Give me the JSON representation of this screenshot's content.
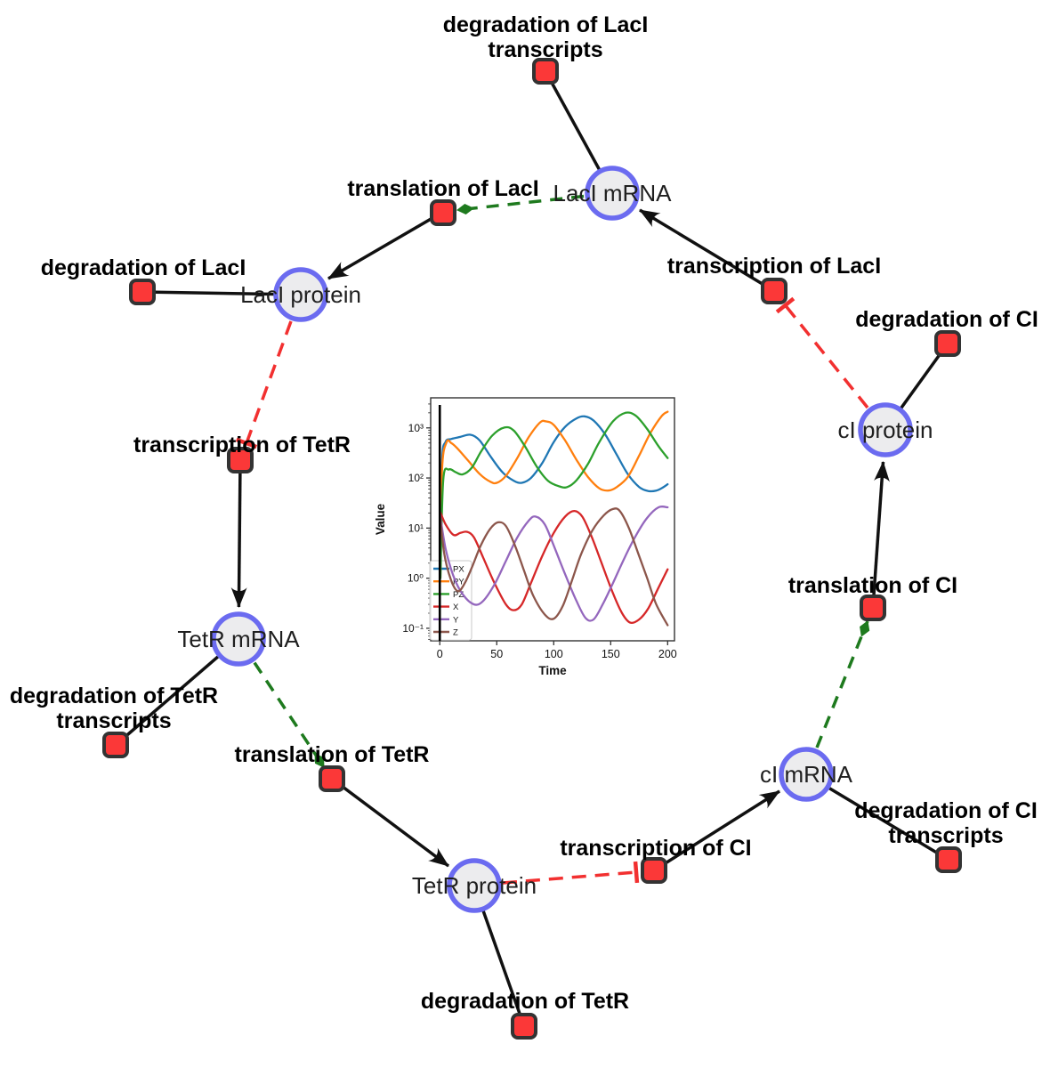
{
  "network": {
    "species": [
      {
        "id": "laci-mrna",
        "label": "LacI mRNA"
      },
      {
        "id": "laci-protein",
        "label": "LacI protein"
      },
      {
        "id": "tetr-mrna",
        "label": "TetR mRNA"
      },
      {
        "id": "tetr-protein",
        "label": "TetR protein"
      },
      {
        "id": "ci-mrna",
        "label": "cI mRNA"
      },
      {
        "id": "ci-protein",
        "label": "cI protein"
      }
    ],
    "reactions": [
      {
        "id": "degradation-laci-transcripts",
        "label": "degradation of LacI transcripts"
      },
      {
        "id": "translation-laci",
        "label": "translation of LacI"
      },
      {
        "id": "degradation-laci",
        "label": "degradation of LacI"
      },
      {
        "id": "transcription-tetr",
        "label": "transcription of TetR"
      },
      {
        "id": "degradation-tetr-transcripts",
        "label": "degradation of TetR transcripts"
      },
      {
        "id": "translation-tetr",
        "label": "translation of TetR"
      },
      {
        "id": "degradation-tetr",
        "label": "degradation of TetR"
      },
      {
        "id": "transcription-ci",
        "label": "transcription of CI"
      },
      {
        "id": "degradation-ci-transcripts",
        "label": "degradation of CI transcripts"
      },
      {
        "id": "translation-ci",
        "label": "translation of CI"
      },
      {
        "id": "degradation-ci",
        "label": "degradation of CI"
      },
      {
        "id": "transcription-laci",
        "label": "transcription of LacI"
      }
    ],
    "colors": {
      "species_fill": "#ececee",
      "species_stroke": "#6b6bf0",
      "reaction_fill": "#fb3838",
      "reaction_stroke": "#333333",
      "edge_black": "#111111",
      "edge_activation_green": "#1e7a1e",
      "edge_inhibition_red": "#f23030"
    }
  },
  "chart_data": {
    "type": "line",
    "title": "",
    "xlabel": "Time",
    "ylabel": "Value",
    "x_ticks": [
      0,
      50,
      100,
      150,
      200
    ],
    "y_scale": "log",
    "y_tick_exponents": [
      -1,
      0,
      1,
      2,
      3
    ],
    "xlim": [
      -8,
      206
    ],
    "ylim_log": [
      -1.25,
      3.6
    ],
    "grid": false,
    "legend_position": "lower left",
    "annotations": [
      {
        "type": "vline",
        "x": 0,
        "color": "#000000"
      }
    ],
    "series": [
      {
        "name": "PX",
        "color": "#1f77b4",
        "points": [
          [
            0.5,
            1
          ],
          [
            2,
            200
          ],
          [
            5,
            520
          ],
          [
            10,
            600
          ],
          [
            18,
            660
          ],
          [
            27,
            730
          ],
          [
            35,
            560
          ],
          [
            45,
            260
          ],
          [
            55,
            130
          ],
          [
            65,
            88
          ],
          [
            72,
            80
          ],
          [
            80,
            100
          ],
          [
            90,
            200
          ],
          [
            100,
            520
          ],
          [
            110,
            1050
          ],
          [
            120,
            1550
          ],
          [
            127,
            1700
          ],
          [
            135,
            1400
          ],
          [
            145,
            750
          ],
          [
            155,
            300
          ],
          [
            165,
            120
          ],
          [
            175,
            66
          ],
          [
            183,
            55
          ],
          [
            190,
            56
          ],
          [
            195,
            63
          ],
          [
            200,
            75
          ]
        ]
      },
      {
        "name": "PY",
        "color": "#ff7f0e",
        "points": [
          [
            0.5,
            1
          ],
          [
            2,
            150
          ],
          [
            6,
            520
          ],
          [
            10,
            500
          ],
          [
            15,
            400
          ],
          [
            25,
            220
          ],
          [
            35,
            120
          ],
          [
            44,
            85
          ],
          [
            50,
            80
          ],
          [
            58,
            110
          ],
          [
            68,
            250
          ],
          [
            78,
            650
          ],
          [
            88,
            1280
          ],
          [
            93,
            1350
          ],
          [
            100,
            1150
          ],
          [
            110,
            560
          ],
          [
            120,
            230
          ],
          [
            130,
            105
          ],
          [
            140,
            62
          ],
          [
            148,
            56
          ],
          [
            155,
            65
          ],
          [
            165,
            105
          ],
          [
            175,
            280
          ],
          [
            185,
            800
          ],
          [
            195,
            1750
          ],
          [
            200,
            2100
          ]
        ]
      },
      {
        "name": "PZ",
        "color": "#2ca02c",
        "points": [
          [
            0.5,
            1
          ],
          [
            3,
            90
          ],
          [
            8,
            148
          ],
          [
            14,
            130
          ],
          [
            20,
            118
          ],
          [
            28,
            160
          ],
          [
            36,
            330
          ],
          [
            46,
            700
          ],
          [
            57,
            1020
          ],
          [
            65,
            880
          ],
          [
            75,
            420
          ],
          [
            85,
            170
          ],
          [
            95,
            88
          ],
          [
            105,
            68
          ],
          [
            112,
            66
          ],
          [
            120,
            90
          ],
          [
            130,
            190
          ],
          [
            140,
            520
          ],
          [
            152,
            1350
          ],
          [
            163,
            2000
          ],
          [
            172,
            1750
          ],
          [
            182,
            950
          ],
          [
            192,
            430
          ],
          [
            200,
            250
          ]
        ]
      },
      {
        "name": "X",
        "color": "#d62728",
        "points": [
          [
            0,
            22
          ],
          [
            5,
            12
          ],
          [
            12,
            7.3
          ],
          [
            18,
            8
          ],
          [
            24,
            8.4
          ],
          [
            30,
            6.5
          ],
          [
            38,
            2.6
          ],
          [
            48,
            0.8
          ],
          [
            58,
            0.3
          ],
          [
            65,
            0.23
          ],
          [
            72,
            0.3
          ],
          [
            80,
            0.8
          ],
          [
            90,
            2.8
          ],
          [
            100,
            8
          ],
          [
            110,
            17
          ],
          [
            118,
            22
          ],
          [
            125,
            17
          ],
          [
            133,
            7
          ],
          [
            142,
            2
          ],
          [
            152,
            0.5
          ],
          [
            160,
            0.2
          ],
          [
            167,
            0.13
          ],
          [
            175,
            0.15
          ],
          [
            183,
            0.25
          ],
          [
            192,
            0.65
          ],
          [
            200,
            1.5
          ]
        ]
      },
      {
        "name": "Y",
        "color": "#9467bd",
        "points": [
          [
            0,
            20
          ],
          [
            5,
            4
          ],
          [
            12,
            1.1
          ],
          [
            20,
            0.48
          ],
          [
            30,
            0.3
          ],
          [
            38,
            0.35
          ],
          [
            48,
            0.75
          ],
          [
            58,
            2.2
          ],
          [
            68,
            6.5
          ],
          [
            78,
            14
          ],
          [
            84,
            17
          ],
          [
            92,
            12
          ],
          [
            100,
            4.5
          ],
          [
            110,
            1.2
          ],
          [
            120,
            0.35
          ],
          [
            128,
            0.16
          ],
          [
            135,
            0.15
          ],
          [
            143,
            0.3
          ],
          [
            152,
            0.8
          ],
          [
            162,
            2.5
          ],
          [
            172,
            7
          ],
          [
            182,
            16
          ],
          [
            192,
            26
          ],
          [
            200,
            26
          ]
        ]
      },
      {
        "name": "Z",
        "color": "#8c564b",
        "points": [
          [
            0,
            20
          ],
          [
            4,
            3
          ],
          [
            10,
            0.9
          ],
          [
            16,
            0.55
          ],
          [
            22,
            0.8
          ],
          [
            28,
            1.6
          ],
          [
            36,
            4.5
          ],
          [
            44,
            9.5
          ],
          [
            51,
            13
          ],
          [
            58,
            11
          ],
          [
            66,
            4.5
          ],
          [
            74,
            1.4
          ],
          [
            82,
            0.45
          ],
          [
            92,
            0.19
          ],
          [
            100,
            0.155
          ],
          [
            108,
            0.28
          ],
          [
            116,
            0.9
          ],
          [
            124,
            3
          ],
          [
            134,
            9
          ],
          [
            144,
            18
          ],
          [
            152,
            24
          ],
          [
            158,
            22
          ],
          [
            166,
            10
          ],
          [
            174,
            3.2
          ],
          [
            182,
            1
          ],
          [
            190,
            0.3
          ],
          [
            200,
            0.115
          ]
        ]
      }
    ]
  }
}
